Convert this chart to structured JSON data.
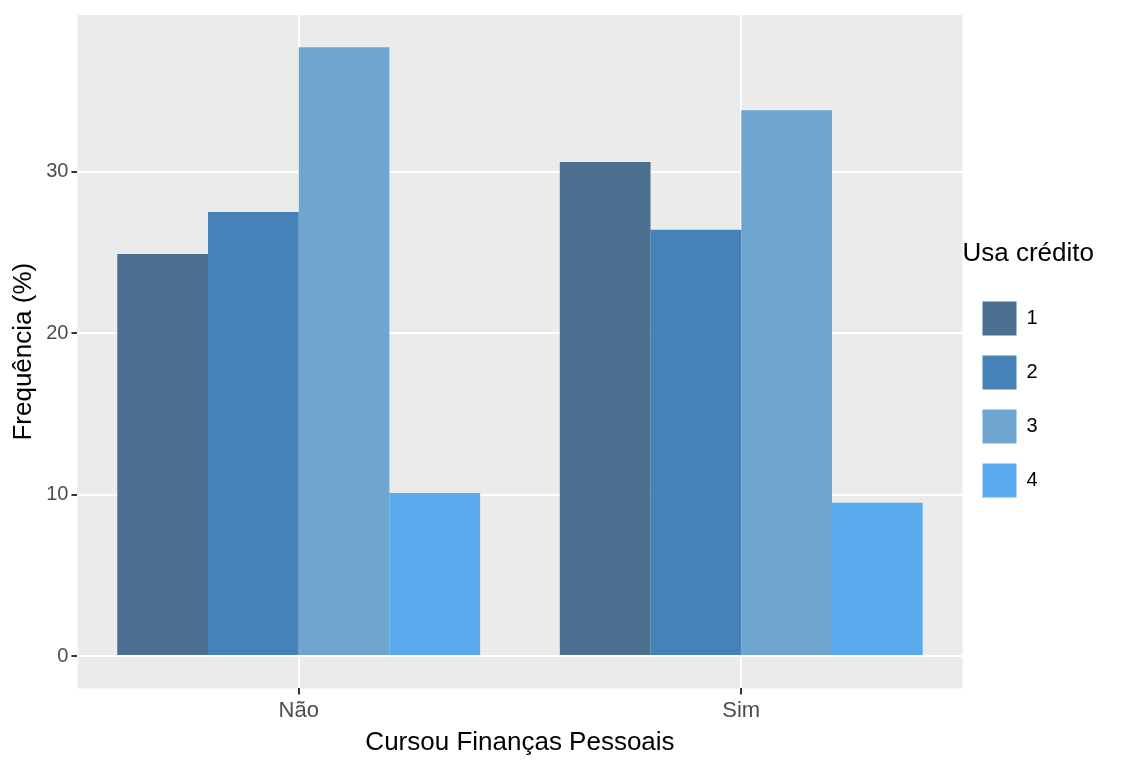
{
  "chart_data": {
    "type": "bar",
    "xlabel": "Cursou Finanças Pessoais",
    "ylabel": "Frequência (%)",
    "legend_title": "Usa crédito",
    "categories": [
      "Não",
      "Sim"
    ],
    "series": [
      {
        "name": "1",
        "color": "#4a6f8f",
        "values": [
          24.9,
          30.6
        ]
      },
      {
        "name": "2",
        "color": "#4682b8",
        "values": [
          27.5,
          26.4
        ]
      },
      {
        "name": "3",
        "color": "#6ea6d0",
        "values": [
          37.7,
          33.8
        ]
      },
      {
        "name": "4",
        "color": "#5aaaee",
        "values": [
          10.1,
          9.5
        ]
      }
    ],
    "ylim": [
      -2,
      39.7
    ],
    "yticks": [
      0,
      10,
      20,
      30
    ],
    "grid": true,
    "legend": "right"
  }
}
